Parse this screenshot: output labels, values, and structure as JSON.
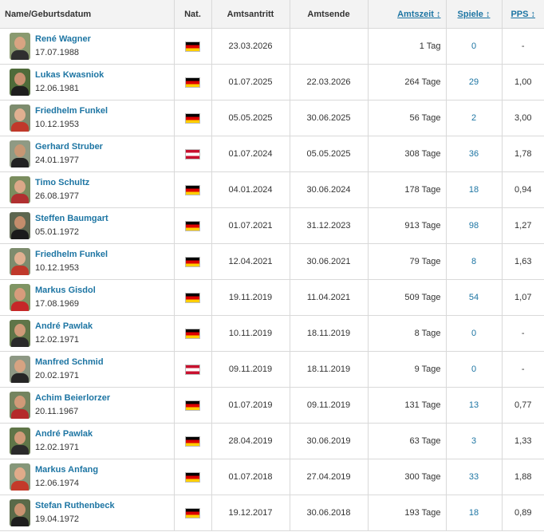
{
  "header": {
    "name": "Name/Geburtsdatum",
    "nat": "Nat.",
    "start": "Amtsantritt",
    "end": "Amtsende",
    "tenure": "Amtszeit ↕",
    "games": "Spiele ↕",
    "pps": "PPS ↕"
  },
  "rows": [
    {
      "name": "René Wagner",
      "dob": "17.07.1988",
      "nat": "de",
      "start": "23.03.2026",
      "end": "",
      "tenure": "1 Tag",
      "games": "0",
      "pps": "-",
      "avatar_bg": "#8a9a70",
      "avatar_face": "#d8a482",
      "avatar_shirt": "#2f2f2f"
    },
    {
      "name": "Lukas Kwasniok",
      "dob": "12.06.1981",
      "nat": "de",
      "start": "01.07.2025",
      "end": "22.03.2026",
      "tenure": "264 Tage",
      "games": "29",
      "pps": "1,00",
      "avatar_bg": "#4f6b3a",
      "avatar_face": "#c99171",
      "avatar_shirt": "#1e1e1e"
    },
    {
      "name": "Friedhelm Funkel",
      "dob": "10.12.1953",
      "nat": "de",
      "start": "05.05.2025",
      "end": "30.06.2025",
      "tenure": "56 Tage",
      "games": "2",
      "pps": "3,00",
      "avatar_bg": "#7d8c6e",
      "avatar_face": "#e0b091",
      "avatar_shirt": "#c0392b"
    },
    {
      "name": "Gerhard Struber",
      "dob": "24.01.1977",
      "nat": "at",
      "start": "01.07.2024",
      "end": "05.05.2025",
      "tenure": "308 Tage",
      "games": "36",
      "pps": "1,78",
      "avatar_bg": "#8f9a84",
      "avatar_face": "#c79774",
      "avatar_shirt": "#222222"
    },
    {
      "name": "Timo Schultz",
      "dob": "26.08.1977",
      "nat": "de",
      "start": "04.01.2024",
      "end": "30.06.2024",
      "tenure": "178 Tage",
      "games": "18",
      "pps": "0,94",
      "avatar_bg": "#7b8d5f",
      "avatar_face": "#dba888",
      "avatar_shirt": "#b03030"
    },
    {
      "name": "Steffen Baumgart",
      "dob": "05.01.1972",
      "nat": "de",
      "start": "01.07.2021",
      "end": "31.12.2023",
      "tenure": "913 Tage",
      "games": "98",
      "pps": "1,27",
      "avatar_bg": "#5d6650",
      "avatar_face": "#c48d6c",
      "avatar_shirt": "#1b1b1b"
    },
    {
      "name": "Friedhelm Funkel",
      "dob": "10.12.1953",
      "nat": "de",
      "start": "12.04.2021",
      "end": "30.06.2021",
      "tenure": "79 Tage",
      "games": "8",
      "pps": "1,63",
      "avatar_bg": "#7d8c6e",
      "avatar_face": "#e0b091",
      "avatar_shirt": "#c0392b"
    },
    {
      "name": "Markus Gisdol",
      "dob": "17.08.1969",
      "nat": "de",
      "start": "19.11.2019",
      "end": "11.04.2021",
      "tenure": "509 Tage",
      "games": "54",
      "pps": "1,07",
      "avatar_bg": "#7f9463",
      "avatar_face": "#d79c7c",
      "avatar_shirt": "#c62828"
    },
    {
      "name": "André Pawlak",
      "dob": "12.02.1971",
      "nat": "de",
      "start": "10.11.2019",
      "end": "18.11.2019",
      "tenure": "8 Tage",
      "games": "0",
      "pps": "-",
      "avatar_bg": "#5f7548",
      "avatar_face": "#cf9a78",
      "avatar_shirt": "#2a2a2a"
    },
    {
      "name": "Manfred Schmid",
      "dob": "20.02.1971",
      "nat": "at",
      "start": "09.11.2019",
      "end": "18.11.2019",
      "tenure": "9 Tage",
      "games": "0",
      "pps": "-",
      "avatar_bg": "#8d9884",
      "avatar_face": "#d6a382",
      "avatar_shirt": "#262626"
    },
    {
      "name": "Achim Beierlorzer",
      "dob": "20.11.1967",
      "nat": "de",
      "start": "01.07.2019",
      "end": "09.11.2019",
      "tenure": "131 Tage",
      "games": "13",
      "pps": "0,77",
      "avatar_bg": "#74845f",
      "avatar_face": "#d19a78",
      "avatar_shirt": "#b52a2a"
    },
    {
      "name": "André Pawlak",
      "dob": "12.02.1971",
      "nat": "de",
      "start": "28.04.2019",
      "end": "30.06.2019",
      "tenure": "63 Tage",
      "games": "3",
      "pps": "1,33",
      "avatar_bg": "#5f7548",
      "avatar_face": "#cf9a78",
      "avatar_shirt": "#2a2a2a"
    },
    {
      "name": "Markus Anfang",
      "dob": "12.06.1974",
      "nat": "de",
      "start": "01.07.2018",
      "end": "27.04.2019",
      "tenure": "300 Tage",
      "games": "33",
      "pps": "1,88",
      "avatar_bg": "#86977a",
      "avatar_face": "#e0ab8a",
      "avatar_shirt": "#c43a2a"
    },
    {
      "name": "Stefan Ruthenbeck",
      "dob": "19.04.1972",
      "nat": "de",
      "start": "19.12.2017",
      "end": "30.06.2018",
      "tenure": "193 Tage",
      "games": "18",
      "pps": "0,89",
      "avatar_bg": "#5a6a49",
      "avatar_face": "#c89270",
      "avatar_shirt": "#1d1d1d"
    }
  ]
}
